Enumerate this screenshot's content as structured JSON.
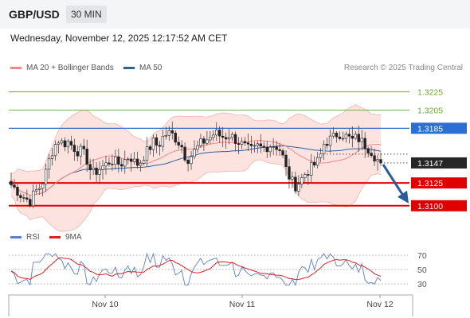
{
  "header": {
    "pair": "GBP/USD",
    "timeframe": "30 MIN"
  },
  "datetime": "Wednesday, November 12, 2025 12:17:52 AM CET",
  "legend_main": [
    {
      "label": "MA 20 + Bollinger Bands",
      "color": "#f08a84"
    },
    {
      "label": "MA 50",
      "color": "#2e5f9f"
    }
  ],
  "credit": "Research © 2025 Trading Central",
  "legend_rsi": [
    {
      "label": "RSI",
      "color": "#5b7fd6"
    },
    {
      "label": "9MA",
      "color": "#e02020"
    }
  ],
  "chart_data": [
    {
      "type": "candlestick",
      "price_range": [
        1.3085,
        1.3242
      ],
      "x_labels": [
        "Nov 10",
        "Nov 11",
        "Nov 12"
      ],
      "levels": [
        {
          "value": 1.3225,
          "label": "1.3225",
          "kind": "target",
          "color": "#6aa832"
        },
        {
          "value": 1.3205,
          "label": "1.3205",
          "kind": "target",
          "color": "#6aa832"
        },
        {
          "value": 1.3185,
          "label": "1.3185",
          "kind": "pivot",
          "color": "#2a6fd6"
        },
        {
          "value": 1.3147,
          "label": "1.3147",
          "kind": "last",
          "color": "#222222"
        },
        {
          "value": 1.3125,
          "label": "1.3125",
          "kind": "support",
          "color": "#e00000"
        },
        {
          "value": 1.31,
          "label": "1.3100",
          "kind": "support",
          "color": "#e00000"
        }
      ],
      "price_path": [
        1.3123,
        1.3118,
        1.3112,
        1.3108,
        1.3105,
        1.3115,
        1.312,
        1.313,
        1.315,
        1.3165,
        1.3172,
        1.3168,
        1.317,
        1.3165,
        1.316,
        1.316,
        1.315,
        1.3135,
        1.3138,
        1.3142,
        1.3145,
        1.315,
        1.3148,
        1.3145,
        1.315,
        1.3155,
        1.3148,
        1.3145,
        1.3155,
        1.3162,
        1.317,
        1.3165,
        1.3175,
        1.318,
        1.3178,
        1.3172,
        1.3165,
        1.315,
        1.3155,
        1.3162,
        1.3168,
        1.3172,
        1.3175,
        1.318,
        1.3177,
        1.3175,
        1.3178,
        1.3174,
        1.317,
        1.3166,
        1.3162,
        1.316,
        1.3165,
        1.3163,
        1.3165,
        1.3167,
        1.3165,
        1.316,
        1.314,
        1.3128,
        1.3122,
        1.3127,
        1.3135,
        1.314,
        1.3145,
        1.315,
        1.3168,
        1.3172,
        1.3175,
        1.318,
        1.3178,
        1.3175,
        1.3172,
        1.3175,
        1.317,
        1.3165,
        1.316,
        1.3152,
        1.3147
      ],
      "forecast": {
        "from": 1.3147,
        "to": 1.31
      }
    },
    {
      "type": "line",
      "name": "RSI",
      "y_ticks": [
        70,
        50,
        30
      ],
      "y_range": [
        20,
        80
      ]
    }
  ]
}
